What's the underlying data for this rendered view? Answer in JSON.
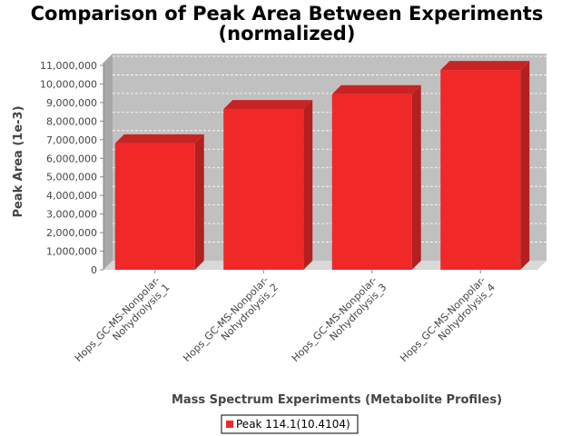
{
  "chart_data": {
    "type": "bar",
    "title_line1": "Comparison of Peak Area Between Experiments",
    "title_line2": "(normalized)",
    "xlabel": "Mass Spectrum Experiments (Metabolite Profiles)",
    "ylabel": "Peak Area (1e-3)",
    "categories": [
      [
        "Hops_GC-MS-Nonpolar-",
        "Nohydrolysis_1"
      ],
      [
        "Hops_GC-MS-Nonpolar-",
        "Nohydrolysis_2"
      ],
      [
        "Hops_GC-MS-Nonpolar-",
        "Nohydrolysis_3"
      ],
      [
        "Hops_GC-MS-Nonpolar-",
        "Nohydrolysis_4"
      ]
    ],
    "series": [
      {
        "name": "Peak 114.1(10.4104)",
        "values": [
          6800000,
          8650000,
          9450000,
          10750000
        ]
      }
    ],
    "ylim": [
      0,
      11000000
    ],
    "yticks": [
      "0",
      "1,000,000",
      "2,000,000",
      "3,000,000",
      "4,000,000",
      "5,000,000",
      "6,000,000",
      "7,000,000",
      "8,000,000",
      "9,000,000",
      "10,000,000",
      "11,000,000"
    ],
    "grid": true,
    "legend": "bottom",
    "colors": {
      "bar_front": "#f02828",
      "bar_side": "#b42020",
      "bar_top": "#c82424",
      "plot_back": "#c0c0c0",
      "plot_floor": "#d8d8d8",
      "plot_wall": "#a8a8a8",
      "grid": "#ffffff"
    }
  }
}
